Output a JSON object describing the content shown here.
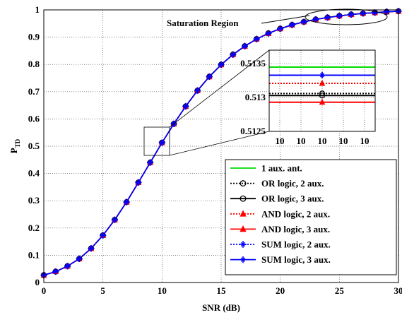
{
  "chart_data": [
    {
      "type": "line",
      "title": "",
      "xlabel": "SNR (dB)",
      "ylabel": "P",
      "ylabel_sub": "TD",
      "xlim": [
        0,
        30
      ],
      "ylim": [
        0,
        1
      ],
      "grid": true,
      "x_ticks": [
        "0",
        "5",
        "10",
        "15",
        "20",
        "25",
        "30"
      ],
      "y_ticks": [
        "0",
        "0.1",
        "0.2",
        "0.3",
        "0.4",
        "0.5",
        "0.6",
        "0.7",
        "0.8",
        "0.9",
        "1"
      ],
      "legend_position": "bottom-right",
      "annotation": "Saturation Region",
      "x": [
        0,
        1,
        2,
        3,
        4,
        5,
        6,
        7,
        8,
        9,
        10,
        11,
        12,
        13,
        14,
        15,
        16,
        17,
        18,
        19,
        20,
        21,
        22,
        23,
        24,
        25,
        26,
        27,
        28,
        29,
        30
      ],
      "y": [
        0.027,
        0.04,
        0.06,
        0.087,
        0.125,
        0.173,
        0.23,
        0.295,
        0.367,
        0.44,
        0.513,
        0.582,
        0.646,
        0.704,
        0.755,
        0.799,
        0.836,
        0.867,
        0.893,
        0.914,
        0.931,
        0.945,
        0.956,
        0.965,
        0.972,
        0.978,
        0.983,
        0.987,
        0.99,
        0.993,
        0.995
      ],
      "series": [
        {
          "name": "1 aux. ant.",
          "color": "#00dd00",
          "style": "solid",
          "marker": "none"
        },
        {
          "name": "OR logic, 2 aux.",
          "color": "#000000",
          "style": "dotted",
          "marker": "circle"
        },
        {
          "name": "OR logic, 3 aux.",
          "color": "#000000",
          "style": "solid",
          "marker": "circle"
        },
        {
          "name": "AND logic, 2 aux.",
          "color": "#ff0000",
          "style": "dotted",
          "marker": "triangle"
        },
        {
          "name": "AND logic, 3 aux.",
          "color": "#ff0000",
          "style": "solid",
          "marker": "triangle"
        },
        {
          "name": "SUM logic, 2 aux.",
          "color": "#0000ff",
          "style": "dotted",
          "marker": "star"
        },
        {
          "name": "SUM logic, 3 aux.",
          "color": "#0000ff",
          "style": "solid",
          "marker": "star"
        }
      ]
    },
    {
      "type": "line",
      "role": "inset-zoom",
      "xlim": [
        9.9,
        10.1
      ],
      "ylim": [
        0.5125,
        0.5137
      ],
      "x_ticks": [
        "10",
        "10",
        "10",
        "10",
        "10"
      ],
      "y_ticks": [
        "0.5125",
        "0.513",
        "0.5135"
      ],
      "grid": true,
      "series": [
        {
          "name": "1 aux. ant.",
          "value": 0.51345
        },
        {
          "name": "OR logic, 2 aux.",
          "value": 0.51306
        },
        {
          "name": "OR logic, 3 aux.",
          "value": 0.51303
        },
        {
          "name": "AND logic, 2 aux.",
          "value": 0.51321
        },
        {
          "name": "AND logic, 3 aux.",
          "value": 0.51293
        },
        {
          "name": "SUM logic, 2 aux.",
          "value": 0.51333
        },
        {
          "name": "SUM logic, 3 aux.",
          "value": 0.51333
        }
      ]
    }
  ]
}
